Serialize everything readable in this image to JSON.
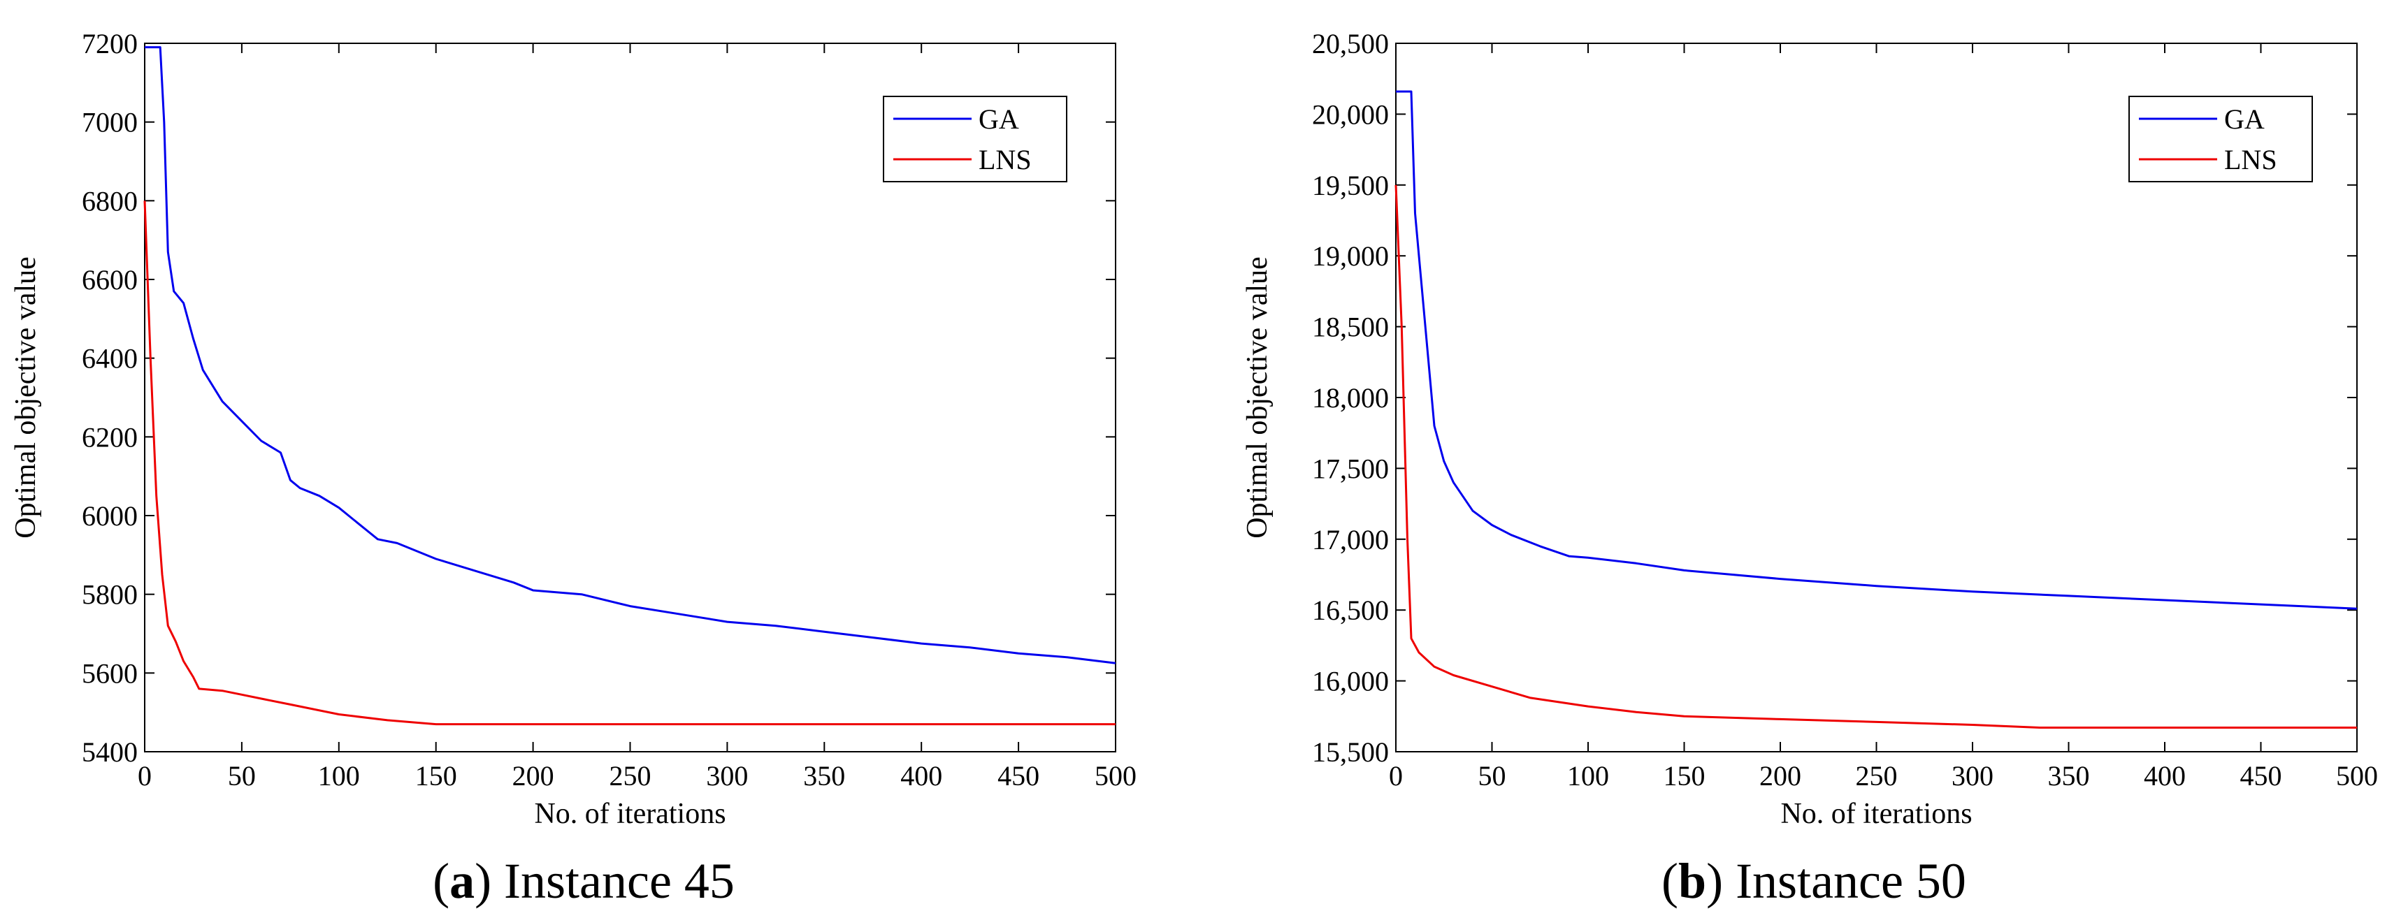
{
  "chart_data": [
    {
      "type": "line",
      "caption_letter": "a",
      "caption_open": "(",
      "caption_close": ")",
      "caption_text": "Instance 45",
      "xlabel": "No. of iterations",
      "ylabel": "Optimal objective value",
      "xlim": [
        0,
        500
      ],
      "ylim": [
        5400,
        7200
      ],
      "xticks": [
        0,
        50,
        100,
        150,
        200,
        250,
        300,
        350,
        400,
        450,
        500
      ],
      "xtick_labels": [
        "0",
        "50",
        "100",
        "150",
        "200",
        "250",
        "300",
        "350",
        "400",
        "450",
        "500"
      ],
      "yticks": [
        5400,
        5600,
        5800,
        6000,
        6200,
        6400,
        6600,
        6800,
        7000,
        7200
      ],
      "ytick_labels": [
        "5400",
        "5600",
        "5800",
        "6000",
        "6200",
        "6400",
        "6600",
        "6800",
        "7000",
        "7200"
      ],
      "legend_position": "top-right",
      "series": [
        {
          "name": "GA",
          "color": "#0000ee",
          "points": [
            [
              0,
              7190
            ],
            [
              8,
              7190
            ],
            [
              10,
              7000
            ],
            [
              12,
              6670
            ],
            [
              15,
              6570
            ],
            [
              20,
              6540
            ],
            [
              25,
              6450
            ],
            [
              30,
              6370
            ],
            [
              40,
              6290
            ],
            [
              50,
              6240
            ],
            [
              60,
              6190
            ],
            [
              70,
              6160
            ],
            [
              75,
              6090
            ],
            [
              80,
              6070
            ],
            [
              90,
              6050
            ],
            [
              100,
              6020
            ],
            [
              110,
              5980
            ],
            [
              120,
              5940
            ],
            [
              130,
              5930
            ],
            [
              150,
              5890
            ],
            [
              170,
              5860
            ],
            [
              190,
              5830
            ],
            [
              200,
              5810
            ],
            [
              225,
              5800
            ],
            [
              250,
              5770
            ],
            [
              275,
              5750
            ],
            [
              300,
              5730
            ],
            [
              325,
              5720
            ],
            [
              350,
              5705
            ],
            [
              375,
              5690
            ],
            [
              400,
              5675
            ],
            [
              425,
              5665
            ],
            [
              450,
              5650
            ],
            [
              475,
              5640
            ],
            [
              500,
              5625
            ]
          ]
        },
        {
          "name": "LNS",
          "color": "#ee0000",
          "points": [
            [
              0,
              6800
            ],
            [
              3,
              6400
            ],
            [
              6,
              6050
            ],
            [
              9,
              5850
            ],
            [
              12,
              5720
            ],
            [
              16,
              5680
            ],
            [
              20,
              5630
            ],
            [
              25,
              5590
            ],
            [
              28,
              5560
            ],
            [
              40,
              5555
            ],
            [
              50,
              5545
            ],
            [
              60,
              5535
            ],
            [
              75,
              5520
            ],
            [
              100,
              5495
            ],
            [
              125,
              5480
            ],
            [
              150,
              5470
            ],
            [
              175,
              5470
            ],
            [
              200,
              5470
            ],
            [
              250,
              5470
            ],
            [
              300,
              5470
            ],
            [
              350,
              5470
            ],
            [
              400,
              5470
            ],
            [
              450,
              5470
            ],
            [
              500,
              5470
            ]
          ]
        }
      ]
    },
    {
      "type": "line",
      "caption_letter": "b",
      "caption_open": "(",
      "caption_close": ")",
      "caption_text": "Instance 50",
      "xlabel": "No. of iterations",
      "ylabel": "Optimal objective value",
      "xlim": [
        0,
        500
      ],
      "ylim": [
        15500,
        20500
      ],
      "xticks": [
        0,
        50,
        100,
        150,
        200,
        250,
        300,
        350,
        400,
        450,
        500
      ],
      "xtick_labels": [
        "0",
        "50",
        "100",
        "150",
        "200",
        "250",
        "300",
        "350",
        "400",
        "450",
        "500"
      ],
      "yticks": [
        15500,
        16000,
        16500,
        17000,
        17500,
        18000,
        18500,
        19000,
        19500,
        20000,
        20500
      ],
      "ytick_labels": [
        "15,500",
        "16,000",
        "16,500",
        "17,000",
        "17,500",
        "18,000",
        "18,500",
        "19,000",
        "19,500",
        "20,000",
        "20,500"
      ],
      "legend_position": "top-right",
      "series": [
        {
          "name": "GA",
          "color": "#0000ee",
          "points": [
            [
              0,
              20160
            ],
            [
              8,
              20160
            ],
            [
              10,
              19300
            ],
            [
              14,
              18700
            ],
            [
              18,
              18100
            ],
            [
              20,
              17800
            ],
            [
              25,
              17550
            ],
            [
              30,
              17400
            ],
            [
              40,
              17200
            ],
            [
              50,
              17100
            ],
            [
              60,
              17030
            ],
            [
              75,
              16950
            ],
            [
              90,
              16880
            ],
            [
              100,
              16870
            ],
            [
              125,
              16830
            ],
            [
              150,
              16780
            ],
            [
              175,
              16750
            ],
            [
              200,
              16720
            ],
            [
              250,
              16670
            ],
            [
              300,
              16630
            ],
            [
              350,
              16600
            ],
            [
              400,
              16570
            ],
            [
              450,
              16540
            ],
            [
              500,
              16510
            ]
          ]
        },
        {
          "name": "LNS",
          "color": "#ee0000",
          "points": [
            [
              0,
              19500
            ],
            [
              3,
              18500
            ],
            [
              6,
              17000
            ],
            [
              8,
              16300
            ],
            [
              12,
              16200
            ],
            [
              20,
              16100
            ],
            [
              30,
              16040
            ],
            [
              50,
              15960
            ],
            [
              70,
              15880
            ],
            [
              100,
              15820
            ],
            [
              125,
              15780
            ],
            [
              150,
              15750
            ],
            [
              200,
              15730
            ],
            [
              250,
              15710
            ],
            [
              300,
              15690
            ],
            [
              335,
              15670
            ],
            [
              400,
              15670
            ],
            [
              450,
              15670
            ],
            [
              500,
              15670
            ]
          ]
        }
      ]
    }
  ]
}
